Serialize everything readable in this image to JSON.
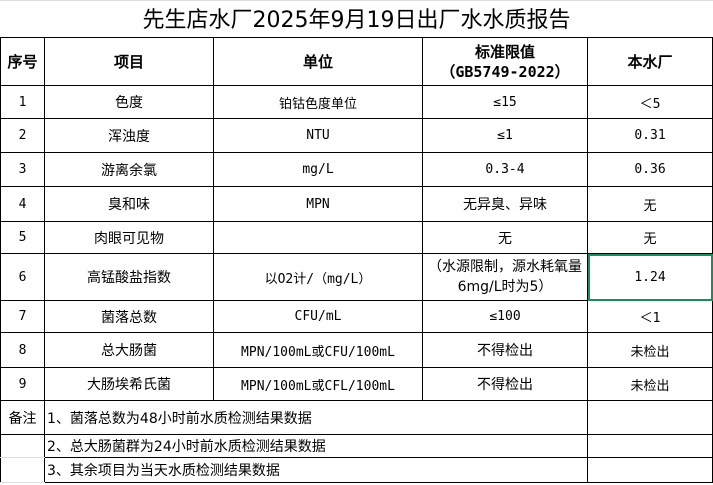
{
  "title": "先生店水厂2025年9月19日出厂水水质报告",
  "headers": [
    "序号",
    "项目",
    "单位",
    "标准限值\n（GB5749-2022）",
    "本水厂"
  ],
  "header_std_line1": "标准限值",
  "header_std_line2": "（GB5749-2022）",
  "rows": [
    [
      "1",
      "色度",
      "铂钴色度单位",
      "≤15",
      "＜5"
    ],
    [
      "2",
      "浑浊度",
      "NTU",
      "≤1",
      "0.31"
    ],
    [
      "3",
      "游离余氯",
      "mg/L",
      "0.3-4",
      "0.36"
    ],
    [
      "4",
      "臭和味",
      "MPN",
      "无异臭、异味",
      "无"
    ],
    [
      "5",
      "肉眼可见物",
      "",
      "无",
      "无"
    ],
    [
      "6",
      "高锰酸盐指数",
      "以O2计/（mg/L）",
      "（水源限制，源水耗氧量6mg/L时为5）",
      "1.24"
    ],
    [
      "7",
      "菌落总数",
      "CFU/mL",
      "≤100",
      "＜1"
    ],
    [
      "8",
      "总大肠菌",
      "MPN/100mL或CFU/100mL",
      "不得检出",
      "未检出"
    ],
    [
      "9",
      "大肠埃希氏菌",
      "MPN/100mL或CFL/100mL",
      "不得检出",
      "未检出"
    ]
  ],
  "notes_label": "备注",
  "notes": [
    "1、菌落总数为48小时前水质检测结果数据",
    "2、总大肠菌群为24小时前水质检测结果数据",
    "3、其余项目为当天水质检测结果数据"
  ],
  "selected_cell_color": "#1f8a5c"
}
